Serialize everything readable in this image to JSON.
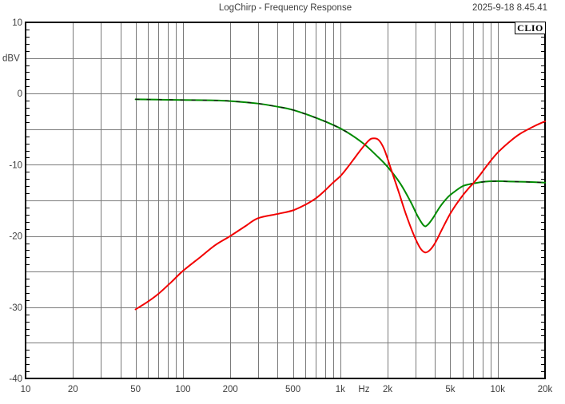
{
  "header": {
    "title": "LogChirp - Frequency Response",
    "datetime": "2025-9-18 8.45.41"
  },
  "watermark": "CLIO",
  "colors": {
    "background": "#ffffff",
    "grid": "#7a7a7a",
    "frame": "#000000",
    "tick": "#000000",
    "text": "#3d3d3d",
    "green_curve": "#008b00",
    "red_curve": "#f20000",
    "overlay_dash": "#151515"
  },
  "chart_data": {
    "type": "line",
    "title": "LogChirp - Frequency Response",
    "xlabel": "Hz",
    "ylabel": "dBV",
    "x_scale": "log",
    "x_range": [
      10,
      20000
    ],
    "y_range": [
      -40,
      10
    ],
    "y_grid_step_db": 5,
    "y_minor_tick_step_db": 1,
    "grid": "on",
    "legend": "none",
    "x_ticks": [
      {
        "f": 10,
        "label": "10"
      },
      {
        "f": 20,
        "label": "20"
      },
      {
        "f": 50,
        "label": "50"
      },
      {
        "f": 100,
        "label": "100"
      },
      {
        "f": 200,
        "label": "200"
      },
      {
        "f": 500,
        "label": "500"
      },
      {
        "f": 1000,
        "label": "1k"
      },
      {
        "f": 2000,
        "label": "2k"
      },
      {
        "f": 5000,
        "label": "5k"
      },
      {
        "f": 10000,
        "label": "10k"
      },
      {
        "f": 20000,
        "label": "20k"
      }
    ],
    "x_unit_label": {
      "label": "Hz",
      "between": [
        1000,
        2000
      ]
    },
    "y_ticks": [
      {
        "v": 10,
        "label": "10"
      },
      {
        "v": 0,
        "label": "0"
      },
      {
        "v": -10,
        "label": "-10"
      },
      {
        "v": -20,
        "label": "-20"
      },
      {
        "v": -30,
        "label": "-30"
      },
      {
        "v": -40,
        "label": "-40"
      }
    ],
    "y_unit_label": {
      "label": "dBV",
      "at_db": 5
    },
    "series": [
      {
        "name": "green-response",
        "color_key": "green_curve",
        "style": "solid",
        "dashed_overlay_color_key": "overlay_dash",
        "dashed_overlay_ranges": [
          [
            50,
            1200
          ],
          [
            6500,
            20000
          ]
        ],
        "points": [
          [
            50,
            -0.8
          ],
          [
            70,
            -0.85
          ],
          [
            100,
            -0.9
          ],
          [
            150,
            -0.95
          ],
          [
            200,
            -1.05
          ],
          [
            300,
            -1.4
          ],
          [
            400,
            -1.85
          ],
          [
            500,
            -2.3
          ],
          [
            700,
            -3.4
          ],
          [
            900,
            -4.4
          ],
          [
            1100,
            -5.4
          ],
          [
            1400,
            -7.0
          ],
          [
            1700,
            -8.7
          ],
          [
            2000,
            -10.3
          ],
          [
            2400,
            -12.6
          ],
          [
            2800,
            -15.2
          ],
          [
            3100,
            -17.2
          ],
          [
            3400,
            -18.55
          ],
          [
            3600,
            -18.4
          ],
          [
            3900,
            -17.4
          ],
          [
            4300,
            -15.9
          ],
          [
            4800,
            -14.6
          ],
          [
            5300,
            -13.8
          ],
          [
            6000,
            -13.0
          ],
          [
            6700,
            -12.7
          ],
          [
            7500,
            -12.5
          ],
          [
            8500,
            -12.35
          ],
          [
            10000,
            -12.3
          ],
          [
            12000,
            -12.35
          ],
          [
            15000,
            -12.4
          ],
          [
            20000,
            -12.5
          ]
        ]
      },
      {
        "name": "red-response",
        "color_key": "red_curve",
        "style": "solid",
        "points": [
          [
            50,
            -30.3
          ],
          [
            60,
            -29.2
          ],
          [
            70,
            -28.1
          ],
          [
            85,
            -26.4
          ],
          [
            100,
            -24.9
          ],
          [
            130,
            -22.9
          ],
          [
            160,
            -21.3
          ],
          [
            200,
            -20.0
          ],
          [
            250,
            -18.6
          ],
          [
            300,
            -17.5
          ],
          [
            400,
            -16.9
          ],
          [
            500,
            -16.4
          ],
          [
            600,
            -15.6
          ],
          [
            700,
            -14.7
          ],
          [
            800,
            -13.6
          ],
          [
            900,
            -12.5
          ],
          [
            1000,
            -11.6
          ],
          [
            1100,
            -10.5
          ],
          [
            1200,
            -9.4
          ],
          [
            1350,
            -7.9
          ],
          [
            1500,
            -6.7
          ],
          [
            1600,
            -6.3
          ],
          [
            1750,
            -6.5
          ],
          [
            1900,
            -7.8
          ],
          [
            2100,
            -10.6
          ],
          [
            2350,
            -13.8
          ],
          [
            2600,
            -16.8
          ],
          [
            2900,
            -19.6
          ],
          [
            3200,
            -21.6
          ],
          [
            3450,
            -22.3
          ],
          [
            3700,
            -22.0
          ],
          [
            4000,
            -21.0
          ],
          [
            4400,
            -19.2
          ],
          [
            4900,
            -17.2
          ],
          [
            5400,
            -15.7
          ],
          [
            6000,
            -14.3
          ],
          [
            6600,
            -13.2
          ],
          [
            7000,
            -12.6
          ],
          [
            7800,
            -11.3
          ],
          [
            8700,
            -9.9
          ],
          [
            10000,
            -8.3
          ],
          [
            12000,
            -6.7
          ],
          [
            14000,
            -5.6
          ],
          [
            17000,
            -4.6
          ],
          [
            20000,
            -3.9
          ]
        ]
      }
    ]
  }
}
